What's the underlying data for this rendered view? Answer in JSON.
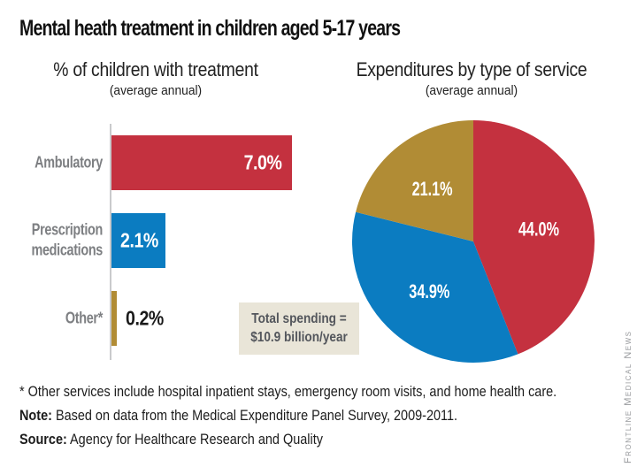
{
  "title": "Mental heath treatment in children aged 5-17 years",
  "bar_chart": {
    "heading": "% of children with treatment",
    "subheading": "(average annual)"
  },
  "pie_chart": {
    "heading": "Expenditures by type of service",
    "subheading": "(average annual)",
    "total_box": {
      "line1": "Total spending =",
      "line2": "$10.9 billion/year"
    }
  },
  "chart_data": [
    {
      "type": "bar",
      "orientation": "horizontal",
      "title": "% of children with treatment (average annual)",
      "categories": [
        "Ambulatory",
        "Prescription medications",
        "Other*"
      ],
      "values": [
        7.0,
        2.1,
        0.2
      ],
      "value_labels": [
        "7.0%",
        "2.1%",
        "0.2%"
      ],
      "colors": [
        "#c4313f",
        "#0b7cc1",
        "#b18c35"
      ],
      "label_positions": [
        "inside-right",
        "inside-left",
        "outside"
      ],
      "xlim": [
        0,
        7.0
      ],
      "grid": false,
      "legend": "none"
    },
    {
      "type": "pie",
      "title": "Expenditures by type of service (average annual)",
      "slices": [
        {
          "value": 44.0,
          "label": "44.0%",
          "color": "#c4313f"
        },
        {
          "value": 34.9,
          "label": "34.9%",
          "color": "#0b7cc1"
        },
        {
          "value": 21.1,
          "label": "21.1%",
          "color": "#b18c35"
        }
      ],
      "start_angle": "12-o-clock",
      "direction": "clockwise",
      "annotation": "Total spending = $10.9 billion/year"
    }
  ],
  "footnotes": {
    "line1": "* Other services include hospital inpatient stays, emergency room visits, and home health care.",
    "note_label": "Note:",
    "note_text": " Based on data from the Medical Expenditure Panel Survey, 2009-2011.",
    "source_label": "Source:",
    "source_text": " Agency for Healthcare Research and Quality"
  },
  "watermark": "Frontline Medical News",
  "palette": {
    "red": "#c4313f",
    "blue": "#0b7cc1",
    "gold": "#b18c35",
    "category_label_gray": "#7d7f82",
    "axis_gray": "#c9cacc",
    "annotation_bg": "#e9e5d8",
    "annotation_text": "#53565c",
    "watermark_gray": "#97999c"
  }
}
